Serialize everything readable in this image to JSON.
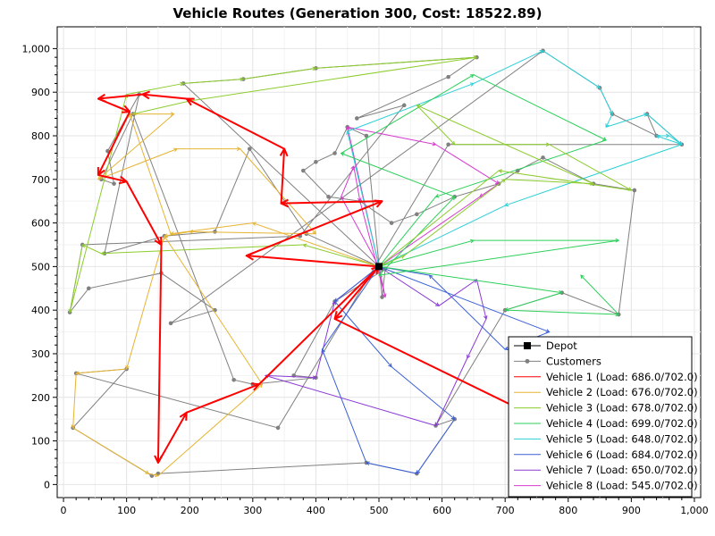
{
  "chart_data": {
    "type": "scatter",
    "title": "Vehicle Routes (Generation 300, Cost: 18522.89)",
    "xlabel": "",
    "ylabel": "",
    "xlim": [
      -10,
      1010
    ],
    "ylim": [
      -30,
      1050
    ],
    "grid": true,
    "x_ticks": [
      "0",
      "100",
      "200",
      "300",
      "400",
      "500",
      "600",
      "700",
      "800",
      "900",
      "1,000"
    ],
    "y_ticks": [
      "0",
      "100",
      "200",
      "300",
      "400",
      "500",
      "600",
      "700",
      "800",
      "900",
      "1,000"
    ],
    "legend_position": "bottom-right",
    "colors": {
      "depot": "#000000",
      "customers": "#808080",
      "vehicle_1": "#ff0000",
      "vehicle_2": "#e6b432",
      "vehicle_3": "#8ccc2c",
      "vehicle_4": "#2ccf5a",
      "vehicle_5": "#2ccfd6",
      "vehicle_6": "#3a5fd6",
      "vehicle_7": "#8a3ad6",
      "vehicle_8": "#d63ad0"
    },
    "legend": [
      {
        "key": "depot",
        "label": "Depot"
      },
      {
        "key": "customers",
        "label": "Customers"
      },
      {
        "key": "vehicle_1",
        "label": "Vehicle 1 (Load: 686.0/702.0)"
      },
      {
        "key": "vehicle_2",
        "label": "Vehicle 2 (Load: 676.0/702.0)"
      },
      {
        "key": "vehicle_3",
        "label": "Vehicle 3 (Load: 678.0/702.0)"
      },
      {
        "key": "vehicle_4",
        "label": "Vehicle 4 (Load: 699.0/702.0)"
      },
      {
        "key": "vehicle_5",
        "label": "Vehicle 5 (Load: 648.0/702.0)"
      },
      {
        "key": "vehicle_6",
        "label": "Vehicle 6 (Load: 684.0/702.0)"
      },
      {
        "key": "vehicle_7",
        "label": "Vehicle 7 (Load: 650.0/702.0)"
      },
      {
        "key": "vehicle_8",
        "label": "Vehicle 8 (Load: 545.0/702.0)"
      }
    ],
    "depot": {
      "x": 500,
      "y": 500
    },
    "customers_path": [
      [
        500,
        500
      ],
      [
        190,
        920
      ],
      [
        285,
        930
      ],
      [
        400,
        955
      ],
      [
        655,
        980
      ],
      [
        610,
        935
      ],
      [
        465,
        840
      ],
      [
        540,
        870
      ],
      [
        375,
        570
      ],
      [
        30,
        550
      ],
      [
        10,
        395
      ],
      [
        40,
        450
      ],
      [
        155,
        485
      ],
      [
        240,
        400
      ],
      [
        170,
        370
      ],
      [
        760,
        995
      ],
      [
        850,
        910
      ],
      [
        870,
        850
      ],
      [
        940,
        800
      ],
      [
        925,
        850
      ],
      [
        980,
        780
      ],
      [
        610,
        780
      ],
      [
        340,
        130
      ],
      [
        20,
        255
      ],
      [
        100,
        265
      ],
      [
        15,
        130
      ],
      [
        140,
        20
      ],
      [
        150,
        25
      ],
      [
        480,
        50
      ],
      [
        560,
        25
      ],
      [
        620,
        150
      ],
      [
        590,
        135
      ],
      [
        700,
        400
      ],
      [
        790,
        440
      ],
      [
        880,
        390
      ],
      [
        905,
        675
      ],
      [
        840,
        690
      ],
      [
        760,
        750
      ],
      [
        720,
        720
      ],
      [
        690,
        690
      ],
      [
        620,
        660
      ],
      [
        560,
        620
      ],
      [
        520,
        600
      ],
      [
        470,
        650
      ],
      [
        420,
        660
      ],
      [
        380,
        720
      ],
      [
        400,
        740
      ],
      [
        430,
        760
      ],
      [
        450,
        820
      ],
      [
        480,
        800
      ],
      [
        505,
        430
      ],
      [
        510,
        495
      ],
      [
        430,
        420
      ],
      [
        365,
        250
      ],
      [
        400,
        245
      ],
      [
        300,
        230
      ],
      [
        270,
        240
      ],
      [
        110,
        850
      ],
      [
        60,
        700
      ],
      [
        80,
        690
      ],
      [
        70,
        765
      ],
      [
        120,
        895
      ],
      [
        65,
        530
      ],
      [
        160,
        570
      ],
      [
        240,
        580
      ],
      [
        295,
        770
      ],
      [
        385,
        575
      ],
      [
        500,
        500
      ]
    ],
    "routes": [
      {
        "key": "vehicle_1",
        "arrows": true,
        "points": [
          [
            500,
            500
          ],
          [
            290,
            525
          ],
          [
            505,
            650
          ],
          [
            345,
            645
          ],
          [
            350,
            770
          ],
          [
            195,
            885
          ],
          [
            125,
            895
          ],
          [
            55,
            885
          ],
          [
            105,
            855
          ],
          [
            55,
            710
          ],
          [
            100,
            695
          ],
          [
            155,
            550
          ],
          [
            150,
            50
          ],
          [
            195,
            165
          ],
          [
            310,
            230
          ],
          [
            500,
            500
          ],
          [
            430,
            380
          ],
          [
            770,
            140
          ]
        ]
      },
      {
        "key": "vehicle_2",
        "arrows": false,
        "points": [
          [
            500,
            500
          ],
          [
            300,
            600
          ],
          [
            170,
            575
          ],
          [
            105,
            850
          ],
          [
            175,
            850
          ],
          [
            55,
            700
          ],
          [
            180,
            770
          ],
          [
            280,
            770
          ],
          [
            400,
            575
          ],
          [
            200,
            580
          ],
          [
            160,
            570
          ],
          [
            100,
            265
          ],
          [
            20,
            255
          ],
          [
            15,
            130
          ],
          [
            135,
            25
          ],
          [
            150,
            20
          ],
          [
            315,
            230
          ],
          [
            160,
            570
          ]
        ]
      },
      {
        "key": "vehicle_3",
        "arrows": false,
        "points": [
          [
            500,
            500
          ],
          [
            540,
            525
          ],
          [
            700,
            700
          ],
          [
            840,
            690
          ],
          [
            560,
            870
          ],
          [
            620,
            780
          ],
          [
            770,
            780
          ],
          [
            900,
            675
          ],
          [
            690,
            720
          ],
          [
            500,
            500
          ],
          [
            380,
            550
          ],
          [
            60,
            530
          ],
          [
            30,
            550
          ],
          [
            10,
            395
          ],
          [
            100,
            895
          ],
          [
            190,
            920
          ],
          [
            285,
            930
          ],
          [
            400,
            955
          ],
          [
            655,
            980
          ],
          [
            200,
            880
          ],
          [
            110,
            850
          ]
        ]
      },
      {
        "key": "vehicle_4",
        "arrows": false,
        "points": [
          [
            500,
            500
          ],
          [
            650,
            560
          ],
          [
            880,
            560
          ],
          [
            500,
            480
          ],
          [
            620,
            660
          ],
          [
            440,
            760
          ],
          [
            650,
            940
          ],
          [
            860,
            790
          ],
          [
            590,
            660
          ],
          [
            500,
            500
          ],
          [
            790,
            440
          ],
          [
            700,
            400
          ],
          [
            880,
            390
          ],
          [
            820,
            480
          ]
        ]
      },
      {
        "key": "vehicle_5",
        "arrows": false,
        "points": [
          [
            500,
            500
          ],
          [
            450,
            810
          ],
          [
            650,
            920
          ],
          [
            760,
            995
          ],
          [
            850,
            910
          ],
          [
            870,
            850
          ],
          [
            860,
            820
          ],
          [
            925,
            850
          ],
          [
            980,
            780
          ],
          [
            940,
            800
          ],
          [
            960,
            800
          ],
          [
            980,
            780
          ],
          [
            700,
            640
          ],
          [
            500,
            500
          ]
        ]
      },
      {
        "key": "vehicle_6",
        "arrows": false,
        "points": [
          [
            500,
            500
          ],
          [
            770,
            350
          ],
          [
            700,
            310
          ],
          [
            580,
            480
          ],
          [
            500,
            500
          ],
          [
            430,
            420
          ],
          [
            520,
            270
          ],
          [
            620,
            150
          ],
          [
            560,
            25
          ],
          [
            480,
            50
          ],
          [
            410,
            310
          ],
          [
            500,
            500
          ]
        ]
      },
      {
        "key": "vehicle_7",
        "arrows": false,
        "points": [
          [
            500,
            500
          ],
          [
            595,
            410
          ],
          [
            655,
            470
          ],
          [
            670,
            380
          ],
          [
            640,
            290
          ],
          [
            590,
            135
          ],
          [
            320,
            250
          ],
          [
            400,
            245
          ],
          [
            430,
            420
          ],
          [
            500,
            500
          ]
        ]
      },
      {
        "key": "vehicle_8",
        "arrows": false,
        "points": [
          [
            500,
            500
          ],
          [
            450,
            820
          ],
          [
            590,
            780
          ],
          [
            690,
            690
          ],
          [
            660,
            660
          ],
          [
            500,
            500
          ],
          [
            440,
            660
          ],
          [
            460,
            730
          ],
          [
            470,
            650
          ],
          [
            510,
            430
          ],
          [
            500,
            500
          ]
        ]
      }
    ]
  }
}
